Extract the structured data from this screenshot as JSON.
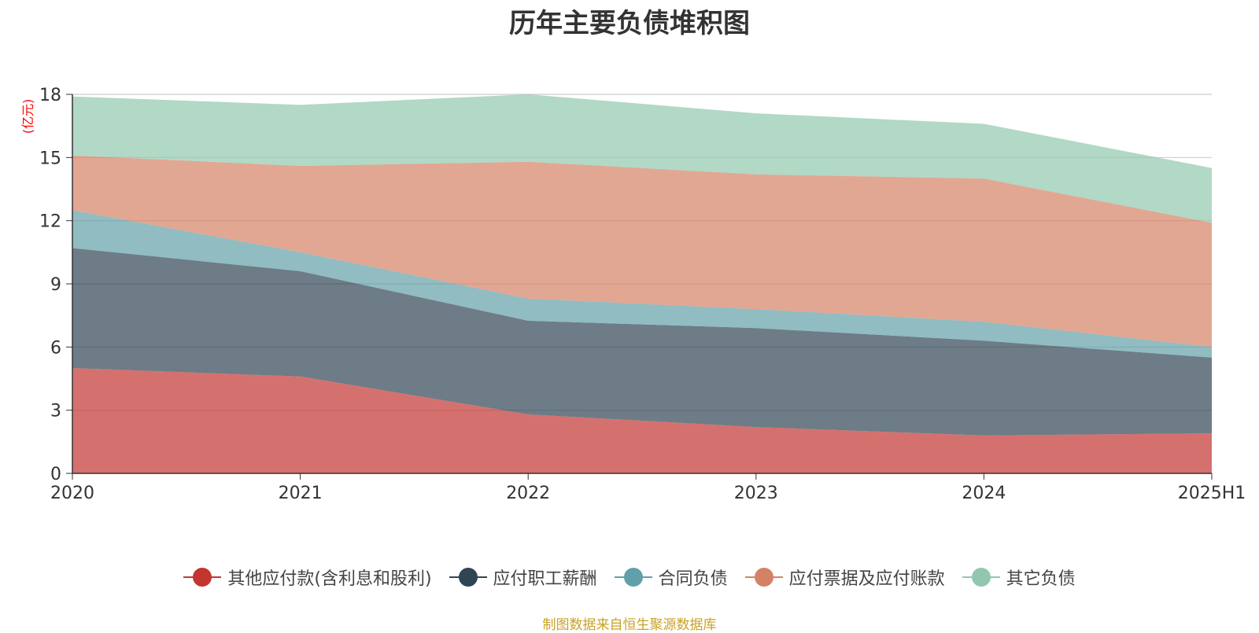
{
  "title": "历年主要负债堆积图",
  "unit_label": "(亿元)",
  "source_note": "制图数据来自恒生聚源数据库",
  "chart_data": {
    "type": "area",
    "stacked": true,
    "categories": [
      "2020",
      "2021",
      "2022",
      "2023",
      "2024",
      "2025H1"
    ],
    "ylim": [
      0,
      18
    ],
    "yticks": [
      0,
      3,
      6,
      9,
      12,
      15,
      18
    ],
    "grid": true,
    "legend_position": "bottom",
    "series": [
      {
        "name": "其他应付款(含利息和股利)",
        "color": "#c23531",
        "values": [
          5.0,
          4.6,
          2.8,
          2.2,
          1.8,
          1.9
        ]
      },
      {
        "name": "应付职工薪酬",
        "color": "#2f4554",
        "values": [
          5.7,
          5.0,
          4.45,
          4.7,
          4.5,
          3.6
        ]
      },
      {
        "name": "合同负债",
        "color": "#61a0a8",
        "values": [
          1.8,
          0.9,
          1.05,
          0.9,
          0.9,
          0.5
        ]
      },
      {
        "name": "应付票据及应付账款",
        "color": "#d48265",
        "values": [
          2.6,
          4.1,
          6.5,
          6.4,
          6.8,
          5.9
        ]
      },
      {
        "name": "其它负债",
        "color": "#91c7ae",
        "values": [
          2.8,
          2.9,
          3.2,
          2.9,
          2.6,
          2.6
        ]
      }
    ]
  }
}
